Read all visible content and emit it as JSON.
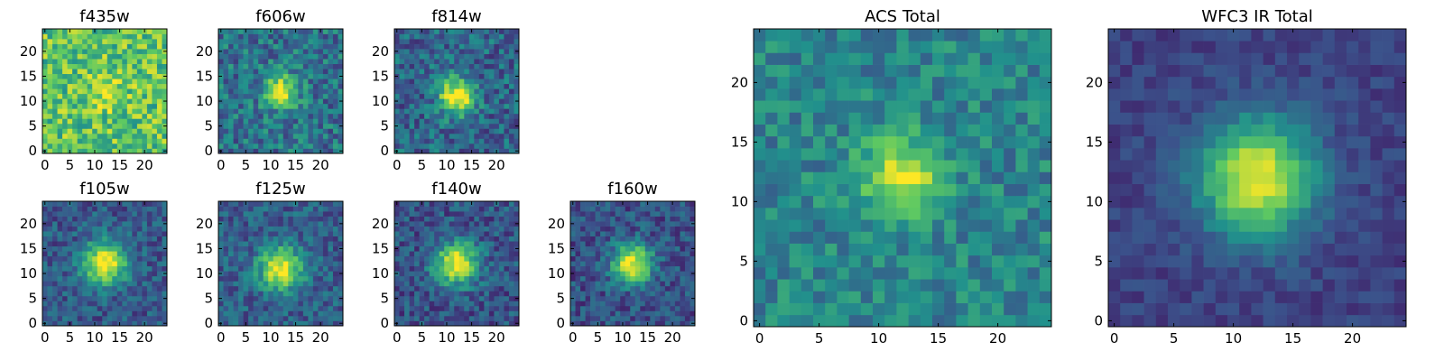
{
  "colormap": "viridis",
  "colors": {
    "viridis_stops": [
      "#440154",
      "#3b528b",
      "#21918c",
      "#5ec962",
      "#fde725"
    ],
    "axis": "#000000",
    "background": "#ffffff"
  },
  "chart_data": [
    {
      "type": "heatmap",
      "title": "f435w",
      "grid_size": [
        25,
        25
      ],
      "x_ticks": [
        0,
        5,
        10,
        15,
        20
      ],
      "y_ticks": [
        0,
        5,
        10,
        15,
        20
      ],
      "xlim": [
        0,
        25
      ],
      "ylim": [
        0,
        25
      ],
      "source_center": [
        12,
        12
      ],
      "source_peak": 0.15,
      "source_sigma": 3.0,
      "background_level": 0.72,
      "noise_amplitude": 0.45
    },
    {
      "type": "heatmap",
      "title": "f606w",
      "grid_size": [
        25,
        25
      ],
      "x_ticks": [
        0,
        5,
        10,
        15,
        20
      ],
      "y_ticks": [
        0,
        5,
        10,
        15,
        20
      ],
      "xlim": [
        0,
        25
      ],
      "ylim": [
        0,
        25
      ],
      "source_center": [
        12,
        12
      ],
      "source_peak": 0.7,
      "source_sigma": 2.2,
      "background_level": 0.38,
      "noise_amplitude": 0.4
    },
    {
      "type": "heatmap",
      "title": "f814w",
      "grid_size": [
        25,
        25
      ],
      "x_ticks": [
        0,
        5,
        10,
        15,
        20
      ],
      "y_ticks": [
        0,
        5,
        10,
        15,
        20
      ],
      "xlim": [
        0,
        25
      ],
      "ylim": [
        0,
        25
      ],
      "source_center": [
        12,
        11
      ],
      "source_peak": 0.75,
      "source_sigma": 2.4,
      "background_level": 0.33,
      "noise_amplitude": 0.38
    },
    {
      "type": "heatmap",
      "title": "f105w",
      "grid_size": [
        25,
        25
      ],
      "x_ticks": [
        0,
        5,
        10,
        15,
        20
      ],
      "y_ticks": [
        0,
        5,
        10,
        15,
        20
      ],
      "xlim": [
        0,
        25
      ],
      "ylim": [
        0,
        25
      ],
      "source_center": [
        12,
        12
      ],
      "source_peak": 0.75,
      "source_sigma": 3.0,
      "background_level": 0.28,
      "noise_amplitude": 0.3
    },
    {
      "type": "heatmap",
      "title": "f125w",
      "grid_size": [
        25,
        25
      ],
      "x_ticks": [
        0,
        5,
        10,
        15,
        20
      ],
      "y_ticks": [
        0,
        5,
        10,
        15,
        20
      ],
      "xlim": [
        0,
        25
      ],
      "ylim": [
        0,
        25
      ],
      "source_center": [
        12,
        11
      ],
      "source_peak": 0.7,
      "source_sigma": 3.0,
      "background_level": 0.3,
      "noise_amplitude": 0.3
    },
    {
      "type": "heatmap",
      "title": "f140w",
      "grid_size": [
        25,
        25
      ],
      "x_ticks": [
        0,
        5,
        10,
        15,
        20
      ],
      "y_ticks": [
        0,
        5,
        10,
        15,
        20
      ],
      "xlim": [
        0,
        25
      ],
      "ylim": [
        0,
        25
      ],
      "source_center": [
        12,
        12
      ],
      "source_peak": 0.72,
      "source_sigma": 3.0,
      "background_level": 0.26,
      "noise_amplitude": 0.32
    },
    {
      "type": "heatmap",
      "title": "f160w",
      "grid_size": [
        25,
        25
      ],
      "x_ticks": [
        0,
        5,
        10,
        15,
        20
      ],
      "y_ticks": [
        0,
        5,
        10,
        15,
        20
      ],
      "xlim": [
        0,
        25
      ],
      "ylim": [
        0,
        25
      ],
      "source_center": [
        12,
        12
      ],
      "source_peak": 0.75,
      "source_sigma": 2.8,
      "background_level": 0.25,
      "noise_amplitude": 0.3
    },
    {
      "type": "heatmap",
      "title": "ACS Total",
      "grid_size": [
        25,
        25
      ],
      "x_ticks": [
        0,
        5,
        10,
        15,
        20
      ],
      "y_ticks": [
        0,
        5,
        10,
        15,
        20
      ],
      "xlim": [
        0,
        25
      ],
      "ylim": [
        0,
        25
      ],
      "source_center": [
        12,
        12
      ],
      "source_peak": 0.55,
      "source_sigma": 2.3,
      "background_level": 0.45,
      "noise_amplitude": 0.3
    },
    {
      "type": "heatmap",
      "title": "WFC3 IR Total",
      "grid_size": [
        25,
        25
      ],
      "x_ticks": [
        0,
        5,
        10,
        15,
        20
      ],
      "y_ticks": [
        0,
        5,
        10,
        15,
        20
      ],
      "xlim": [
        0,
        25
      ],
      "ylim": [
        0,
        25
      ],
      "source_center": [
        12,
        12
      ],
      "source_peak": 0.78,
      "source_sigma": 3.4,
      "background_level": 0.2,
      "noise_amplitude": 0.14
    }
  ]
}
